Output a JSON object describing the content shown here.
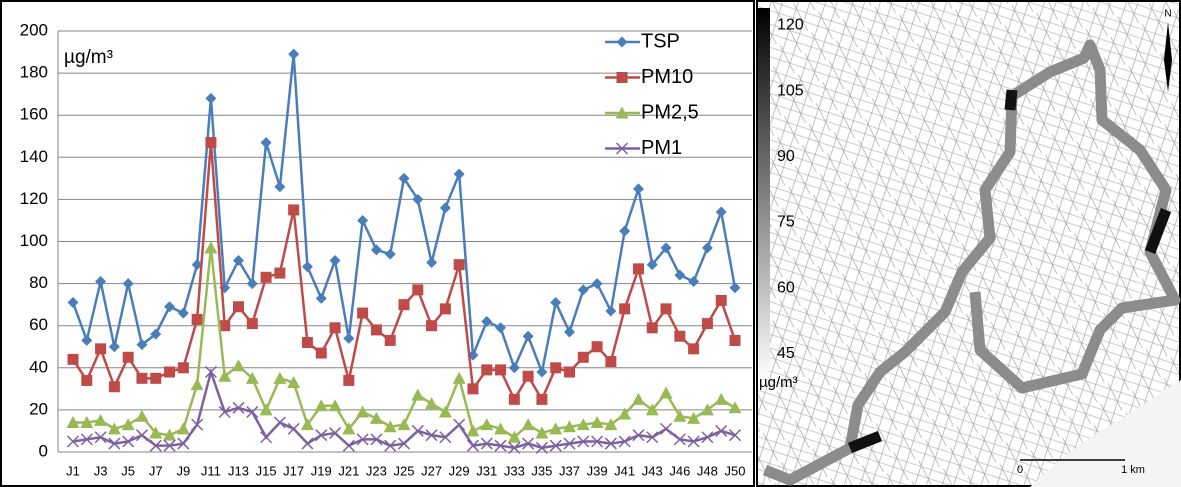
{
  "chart_data": [
    {
      "type": "line",
      "y_label": "µg/m³",
      "categories": [
        "J1",
        null,
        "J3",
        null,
        "J5",
        null,
        "J7",
        null,
        "J9",
        null,
        "J11",
        null,
        "J13",
        null,
        "J15",
        null,
        "J17",
        null,
        "J19",
        null,
        "J21",
        null,
        "J23",
        null,
        "J25",
        null,
        "J27",
        null,
        "J29",
        null,
        "J31",
        null,
        "J33",
        null,
        "J35",
        null,
        "J37",
        null,
        "J39",
        null,
        "J41",
        null,
        "J43",
        null,
        "J46",
        null,
        "J48",
        null,
        "J50"
      ],
      "ylim": [
        0,
        200
      ],
      "yticks": [
        0,
        20,
        40,
        60,
        80,
        100,
        120,
        140,
        160,
        180,
        200
      ],
      "grid": true,
      "legend": "top-right",
      "series": [
        {
          "name": "TSP",
          "color": "#4a7ebb",
          "marker": "diamond",
          "values": [
            71,
            53,
            81,
            50,
            80,
            51,
            56,
            69,
            66,
            89,
            168,
            78,
            91,
            80,
            147,
            126,
            189,
            88,
            73,
            91,
            54,
            110,
            96,
            94,
            130,
            120,
            90,
            116,
            132,
            46,
            62,
            59,
            40,
            55,
            38,
            71,
            57,
            77,
            80,
            67,
            105,
            125,
            89,
            97,
            84,
            81,
            97,
            114,
            78
          ]
        },
        {
          "name": "PM10",
          "color": "#be4b48",
          "marker": "square",
          "values": [
            44,
            34,
            49,
            31,
            45,
            35,
            35,
            38,
            40,
            63,
            147,
            60,
            69,
            61,
            83,
            85,
            115,
            52,
            47,
            59,
            34,
            66,
            58,
            53,
            70,
            77,
            60,
            68,
            89,
            30,
            39,
            39,
            25,
            36,
            25,
            40,
            38,
            45,
            50,
            43,
            68,
            87,
            59,
            68,
            55,
            49,
            61,
            72,
            53
          ]
        },
        {
          "name": "PM2,5",
          "color": "#98b954",
          "marker": "triangle",
          "values": [
            14,
            14,
            15,
            11,
            13,
            17,
            9,
            8,
            11,
            32,
            97,
            36,
            41,
            35,
            20,
            35,
            33,
            13,
            22,
            22,
            11,
            19,
            16,
            12,
            13,
            27,
            23,
            19,
            35,
            10,
            13,
            11,
            7,
            13,
            9,
            11,
            12,
            13,
            14,
            13,
            18,
            25,
            20,
            28,
            17,
            16,
            20,
            25,
            21
          ]
        },
        {
          "name": "PM1",
          "color": "#7d60a0",
          "marker": "x",
          "values": [
            5,
            6,
            7,
            4,
            5,
            8,
            3,
            3,
            4,
            13,
            38,
            19,
            21,
            19,
            7,
            14,
            11,
            4,
            8,
            9,
            3,
            6,
            6,
            3,
            4,
            10,
            8,
            7,
            13,
            3,
            4,
            3,
            2,
            4,
            2,
            3,
            4,
            5,
            5,
            4,
            5,
            8,
            7,
            11,
            6,
            5,
            7,
            10,
            8
          ]
        }
      ]
    },
    {
      "type": "map",
      "colorbar": {
        "lim": [
          39,
          124
        ],
        "ticks": [
          120,
          105,
          90,
          75,
          60,
          45
        ],
        "unit": "µg/m³"
      },
      "north": "N",
      "scale_labels": [
        "0",
        "1 km"
      ]
    }
  ]
}
